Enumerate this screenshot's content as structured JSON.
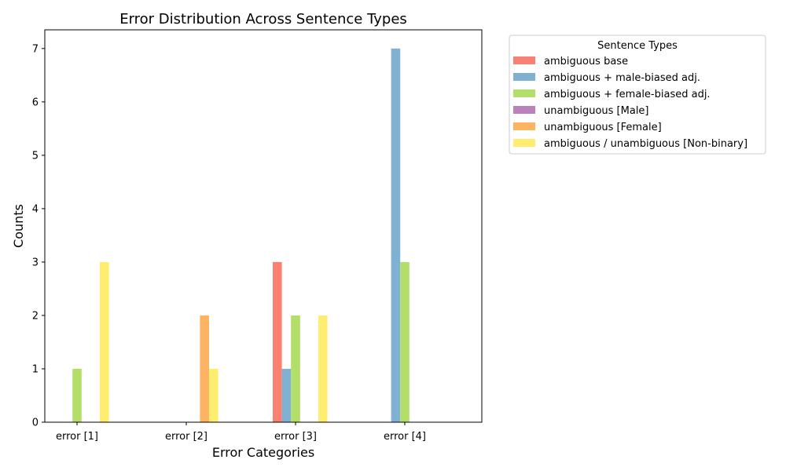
{
  "chart_data": {
    "type": "bar",
    "title": "Error Distribution Across Sentence Types",
    "xlabel": "Error Categories",
    "ylabel": "Counts",
    "categories": [
      "error [1]",
      "error [2]",
      "error [3]",
      "error [4]"
    ],
    "ylim": [
      0,
      7.35
    ],
    "yticks": [
      0,
      1,
      2,
      3,
      4,
      5,
      6,
      7
    ],
    "grid": false,
    "legend": {
      "title": "Sentence Types",
      "placement": "outside-top-right"
    },
    "series": [
      {
        "name": "ambiguous base",
        "color": "#fa8072",
        "values": [
          0,
          0,
          3,
          0
        ]
      },
      {
        "name": "ambiguous + male-biased adj.",
        "color": "#80b1d3",
        "values": [
          0,
          0,
          1,
          7
        ]
      },
      {
        "name": "ambiguous + female-biased adj.",
        "color": "#b3de69",
        "values": [
          1,
          0,
          2,
          3
        ]
      },
      {
        "name": "unambiguous [Male]",
        "color": "#bc80bd",
        "values": [
          0,
          0,
          0,
          0
        ]
      },
      {
        "name": "unambiguous [Female]",
        "color": "#fdb462",
        "values": [
          0,
          2,
          0,
          0
        ]
      },
      {
        "name": "ambiguous / unambiguous [Non-binary]",
        "color": "#ffed6f",
        "values": [
          3,
          1,
          2,
          0
        ]
      }
    ]
  }
}
